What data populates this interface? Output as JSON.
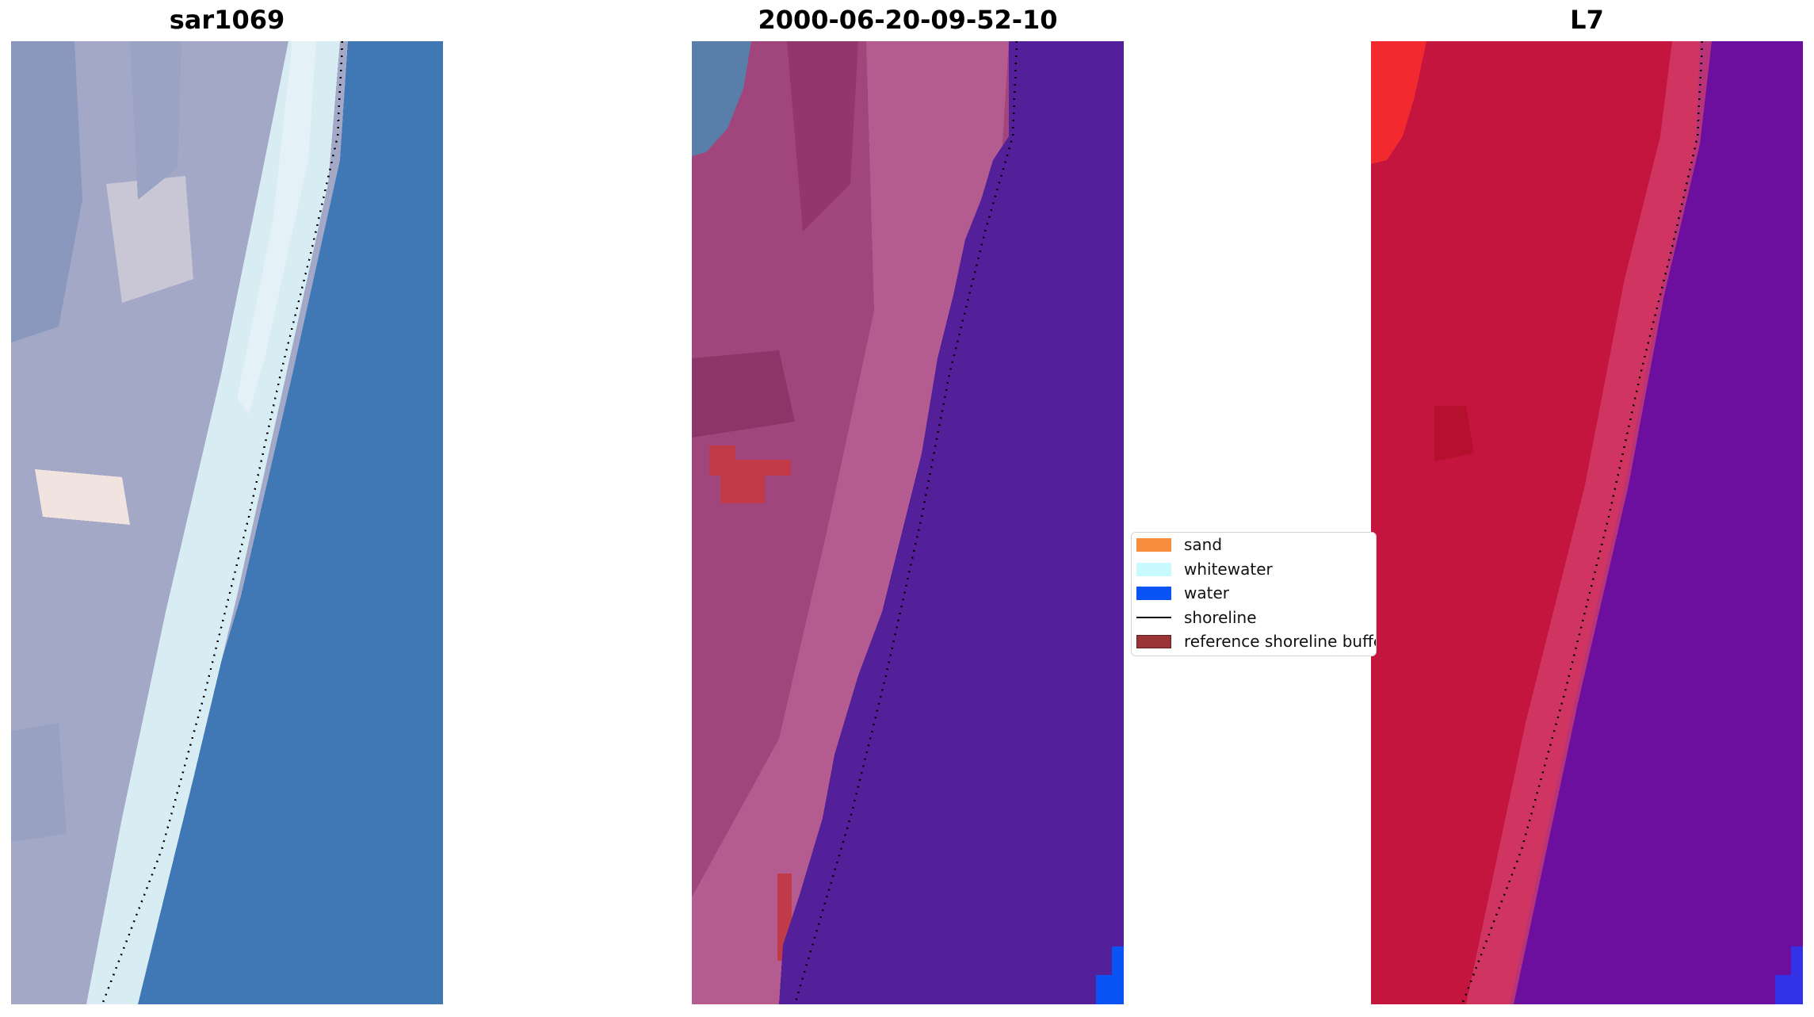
{
  "panels": [
    {
      "title": "sar1069"
    },
    {
      "title": "2000-06-20-09-52-10"
    },
    {
      "title": "L7"
    }
  ],
  "legend": {
    "items": [
      {
        "label": "sand",
        "color": "#f68c3e",
        "kind": "patch"
      },
      {
        "label": "whitewater",
        "color": "#c9fafe",
        "kind": "patch"
      },
      {
        "label": "water",
        "color": "#0a54f5",
        "kind": "patch"
      },
      {
        "label": "shoreline",
        "color": "#000000",
        "kind": "line"
      },
      {
        "label": "reference shoreline buffer",
        "color": "#993335",
        "kind": "patch"
      }
    ]
  },
  "colors": {
    "rgb_water": "#3f78b4",
    "rgb_whitewater": "#d8ecf4",
    "rgb_land": "#a3a8c6",
    "class_land": "#a0467c",
    "class_beach": "#b45c90",
    "class_water": "#53209a",
    "buffer_red": "#c13a48",
    "ndwi_land": "#c4153f",
    "ndwi_water": "#6c0f9e",
    "water_blue": "#0a54f5"
  }
}
